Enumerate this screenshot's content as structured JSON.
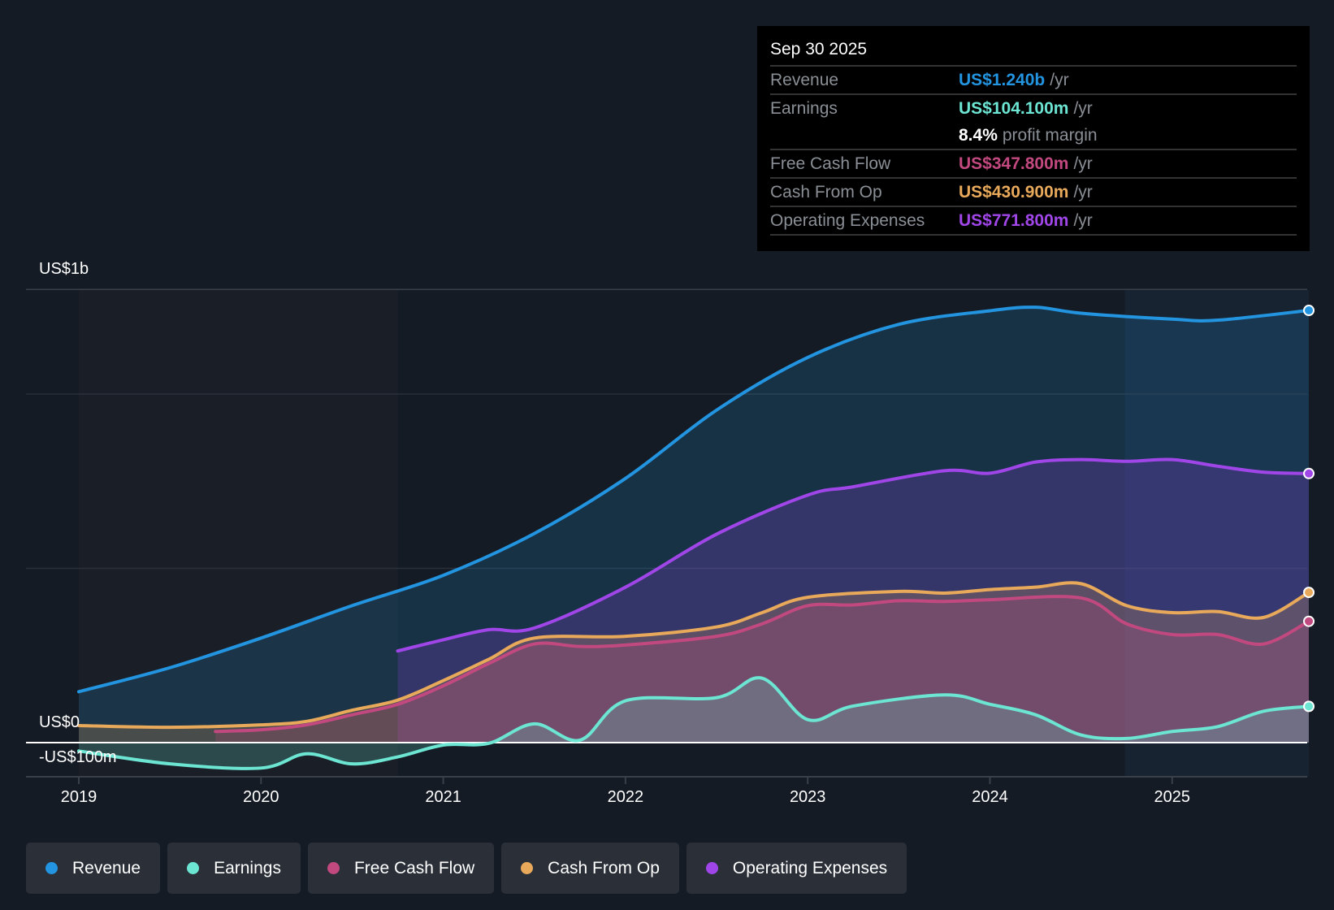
{
  "tooltip": {
    "date": "Sep 30 2025",
    "rows": [
      {
        "label": "Revenue",
        "value": "US$1.240b",
        "unit": "/yr",
        "color": "#2394e0"
      },
      {
        "label": "Earnings",
        "value": "US$104.100m",
        "unit": "/yr",
        "color": "#6ce5d3"
      },
      {
        "label": "",
        "value": "8.4%",
        "unit": "profit margin",
        "color": "#ffffff"
      },
      {
        "label": "Free Cash Flow",
        "value": "US$347.800m",
        "unit": "/yr",
        "color": "#c2497f"
      },
      {
        "label": "Cash From Op",
        "value": "US$430.900m",
        "unit": "/yr",
        "color": "#e8a95b"
      },
      {
        "label": "Operating Expenses",
        "value": "US$771.800m",
        "unit": "/yr",
        "color": "#a046e8"
      }
    ]
  },
  "chart_data": {
    "type": "line",
    "ylabel_top": "US$1b",
    "ylabel_zero": "US$0",
    "ylabel_bottom": "-US$100m",
    "ylim": [
      -97,
      1300
    ],
    "xlim": [
      2018.97,
      2025.75
    ],
    "x_ticks": [
      "2019",
      "2020",
      "2021",
      "2022",
      "2023",
      "2024",
      "2025"
    ],
    "units": "US$ millions",
    "series": [
      {
        "name": "Revenue",
        "color": "#2394e0",
        "x": [
          2019,
          2019.5,
          2020,
          2020.5,
          2021,
          2021.5,
          2022,
          2022.5,
          2023,
          2023.5,
          2024,
          2024.25,
          2024.5,
          2025,
          2025.25,
          2025.75
        ],
        "y": [
          146,
          215,
          300,
          393,
          480,
          600,
          758,
          954,
          1105,
          1200,
          1239,
          1249,
          1232,
          1215,
          1212,
          1240
        ]
      },
      {
        "name": "Earnings",
        "color": "#6ce5d3",
        "x": [
          2019,
          2019.5,
          2020,
          2020.25,
          2020.5,
          2020.75,
          2021,
          2021.25,
          2021.5,
          2021.75,
          2022,
          2022.5,
          2022.75,
          2023,
          2023.25,
          2023.75,
          2024,
          2024.25,
          2024.5,
          2024.75,
          2025,
          2025.25,
          2025.5,
          2025.75
        ],
        "y": [
          -24,
          -61,
          -73,
          -32,
          -61,
          -41,
          -7,
          -2,
          54,
          7,
          120,
          129,
          185,
          66,
          105,
          137,
          110,
          80,
          22,
          12,
          32,
          46,
          90,
          104
        ]
      },
      {
        "name": "Free Cash Flow",
        "color": "#c2497f",
        "x": [
          2019.75,
          2020,
          2020.25,
          2020.5,
          2020.75,
          2021,
          2021.25,
          2021.5,
          2021.75,
          2022,
          2022.5,
          2022.75,
          2023,
          2023.25,
          2023.5,
          2023.75,
          2024,
          2024.5,
          2024.75,
          2025,
          2025.25,
          2025.5,
          2025.75
        ],
        "y": [
          32,
          37,
          51,
          80,
          110,
          163,
          227,
          283,
          276,
          280,
          305,
          341,
          393,
          395,
          407,
          405,
          410,
          415,
          341,
          310,
          310,
          283,
          348
        ]
      },
      {
        "name": "Cash From Op",
        "color": "#e8a95b",
        "x": [
          2019,
          2019.5,
          2020,
          2020.25,
          2020.5,
          2020.75,
          2021,
          2021.25,
          2021.5,
          2022,
          2022.5,
          2022.75,
          2023,
          2023.5,
          2023.75,
          2024,
          2024.25,
          2024.5,
          2024.75,
          2025,
          2025.25,
          2025.5,
          2025.75
        ],
        "y": [
          49,
          44,
          51,
          61,
          93,
          122,
          178,
          239,
          300,
          305,
          332,
          373,
          417,
          434,
          429,
          439,
          446,
          456,
          393,
          373,
          376,
          359,
          431
        ]
      },
      {
        "name": "Operating Expenses",
        "color": "#a046e8",
        "x": [
          2020.75,
          2021,
          2021.25,
          2021.5,
          2022,
          2022.5,
          2023,
          2023.25,
          2023.75,
          2024,
          2024.25,
          2024.5,
          2024.75,
          2025,
          2025.25,
          2025.5,
          2025.75
        ],
        "y": [
          263,
          295,
          324,
          329,
          446,
          598,
          710,
          734,
          780,
          773,
          805,
          812,
          807,
          812,
          793,
          776,
          772
        ]
      }
    ]
  },
  "legend": [
    {
      "label": "Revenue",
      "color": "#2394e0"
    },
    {
      "label": "Earnings",
      "color": "#6ce5d3"
    },
    {
      "label": "Free Cash Flow",
      "color": "#c2497f"
    },
    {
      "label": "Cash From Op",
      "color": "#e8a95b"
    },
    {
      "label": "Operating Expenses",
      "color": "#a046e8"
    }
  ]
}
